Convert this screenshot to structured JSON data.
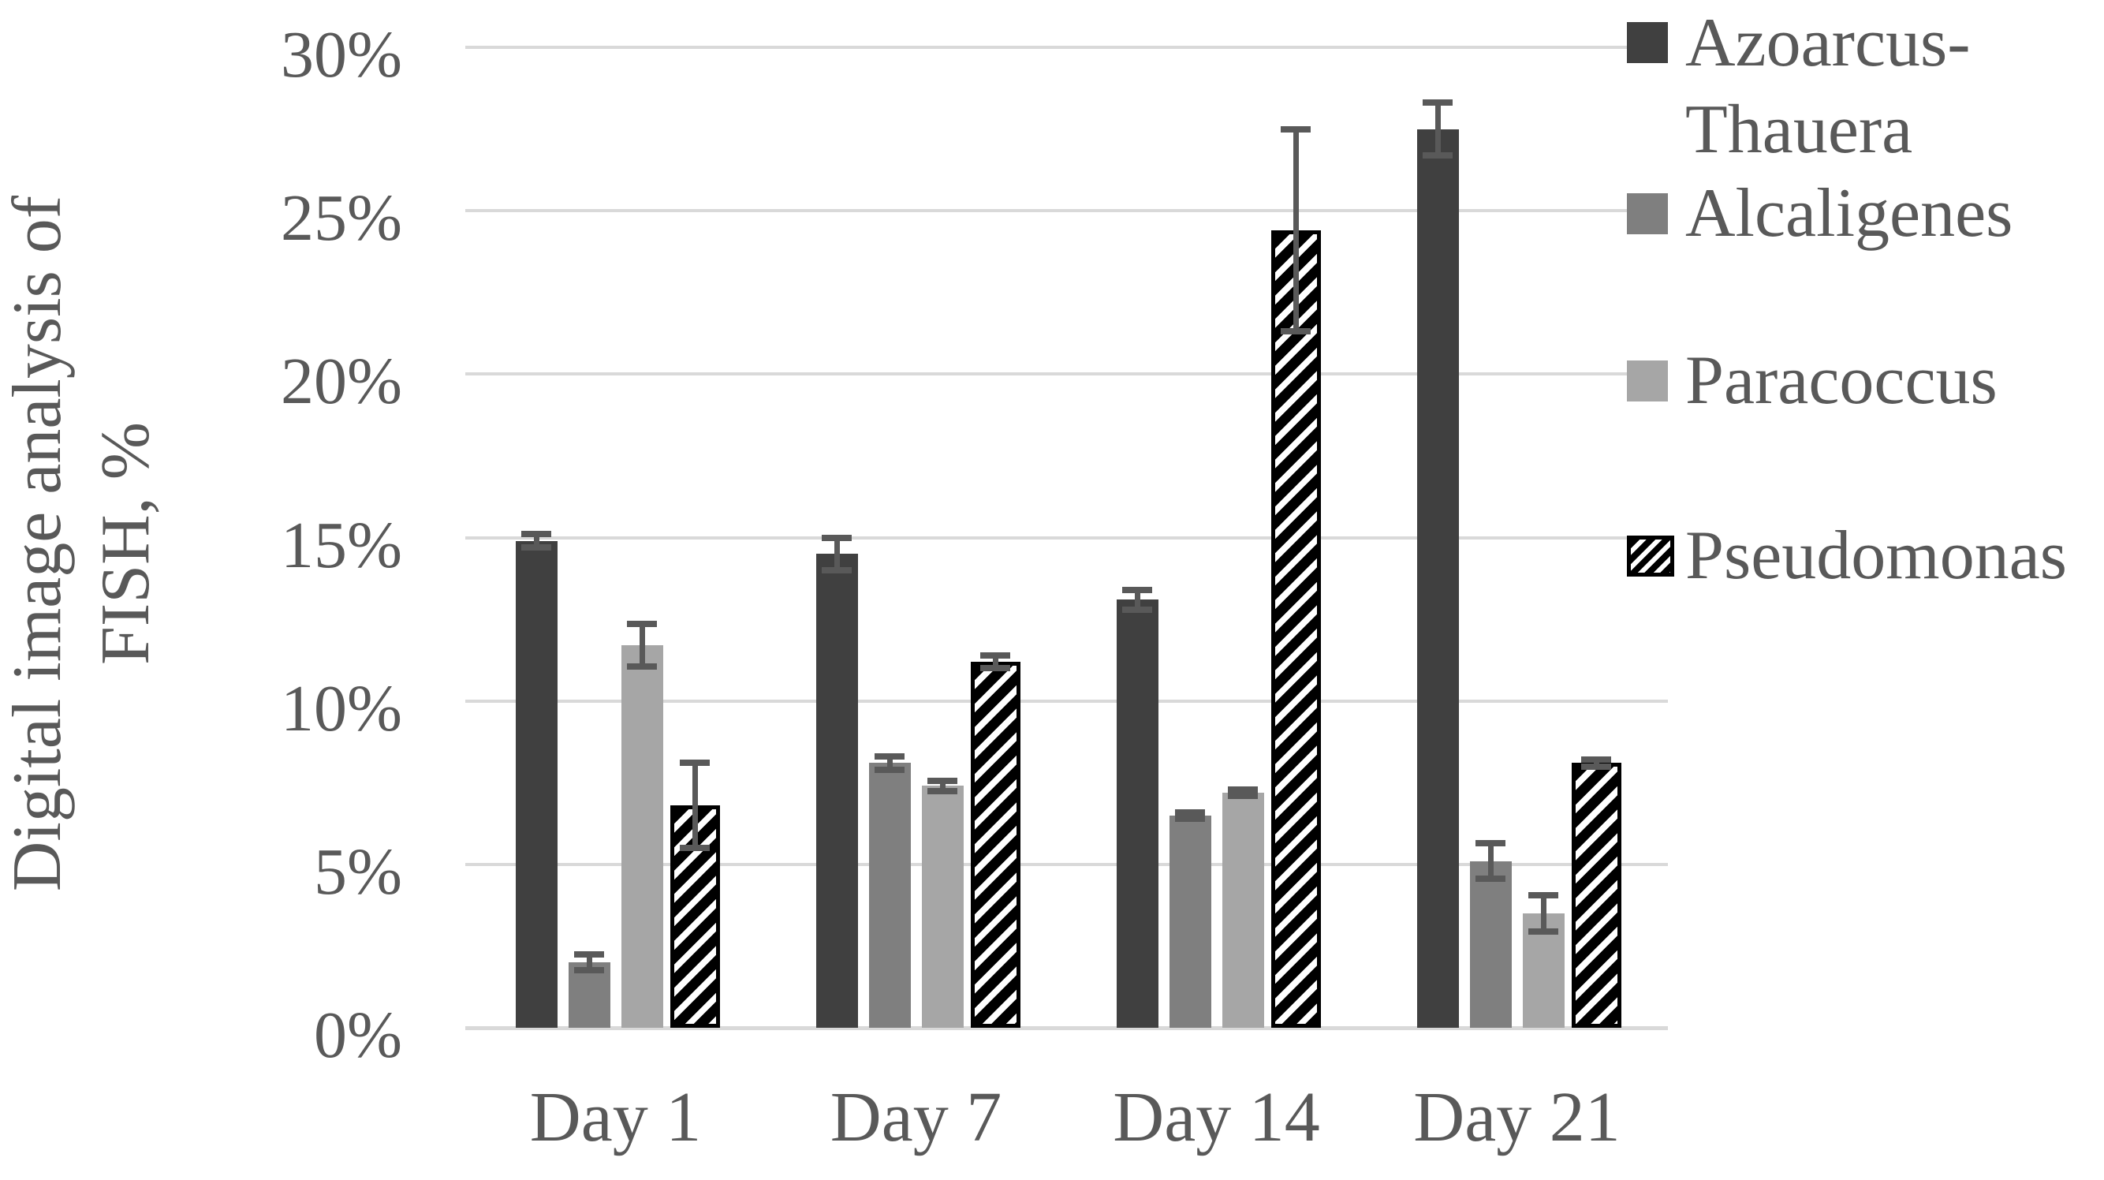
{
  "figure": {
    "background": "#ffffff",
    "kind": "grouped-bar-chart-with-error-bars"
  },
  "chart_data": {
    "type": "bar",
    "title": "",
    "xlabel": "",
    "ylabel": "Digital image analysis of FISH, %",
    "categories": [
      "Day 1",
      "Day 7",
      "Day 14",
      "Day 21"
    ],
    "series": [
      {
        "name": "Azoarcus-Thauera",
        "values": [
          14.9,
          14.5,
          13.1,
          27.5
        ],
        "errors": [
          0.2,
          0.5,
          0.3,
          0.8
        ],
        "color": "#404040",
        "pattern": "solid"
      },
      {
        "name": "Alcaligenes",
        "values": [
          2.0,
          8.1,
          6.5,
          5.1
        ],
        "errors": [
          0.25,
          0.2,
          0.1,
          0.55
        ],
        "color": "#7f7f7f",
        "pattern": "solid"
      },
      {
        "name": "Paracoccus",
        "values": [
          11.7,
          7.4,
          7.2,
          3.5
        ],
        "errors": [
          0.65,
          0.15,
          0.1,
          0.55
        ],
        "color": "#a6a6a6",
        "pattern": "solid"
      },
      {
        "name": "Pseudomonas",
        "values": [
          6.8,
          11.2,
          24.4,
          8.1
        ],
        "errors": [
          1.3,
          0.2,
          3.1,
          0.1
        ],
        "color": "#000000",
        "pattern": "diagonal-hatch"
      }
    ],
    "ylim": [
      0,
      30
    ],
    "y_step": 5,
    "grid": true,
    "legend_position": "right"
  },
  "y_axis": {
    "title_lines": [
      "Digital image analysis of",
      "FISH, %"
    ],
    "tick_labels": [
      "30%",
      "25%",
      "20%",
      "15%",
      "10%",
      "5%",
      "0%"
    ]
  },
  "x_axis": {
    "labels": [
      "Day 1",
      "Day 7",
      "Day 14",
      "Day 21"
    ]
  },
  "legend": {
    "items": [
      {
        "lines": [
          "Azoarcus-",
          "Thauera"
        ],
        "swatch": "solid-dark"
      },
      {
        "lines": [
          "Alcaligenes"
        ],
        "swatch": "solid-medium-gray"
      },
      {
        "lines": [
          "Paracoccus"
        ],
        "swatch": "solid-light-gray"
      },
      {
        "lines": [
          "Pseudomonas"
        ],
        "swatch": "diagonal-hatch"
      }
    ]
  },
  "colors": {
    "series_dark": "#404040",
    "series_medium_gray": "#7f7f7f",
    "series_light_gray": "#a6a6a6",
    "hatch_foreground": "#000000",
    "hatch_background": "#ffffff",
    "gridline": "#d9d9d9",
    "axis_line": "#d9d9d9",
    "text": "#595959",
    "error_bar": "#595959",
    "background": "#ffffff"
  }
}
